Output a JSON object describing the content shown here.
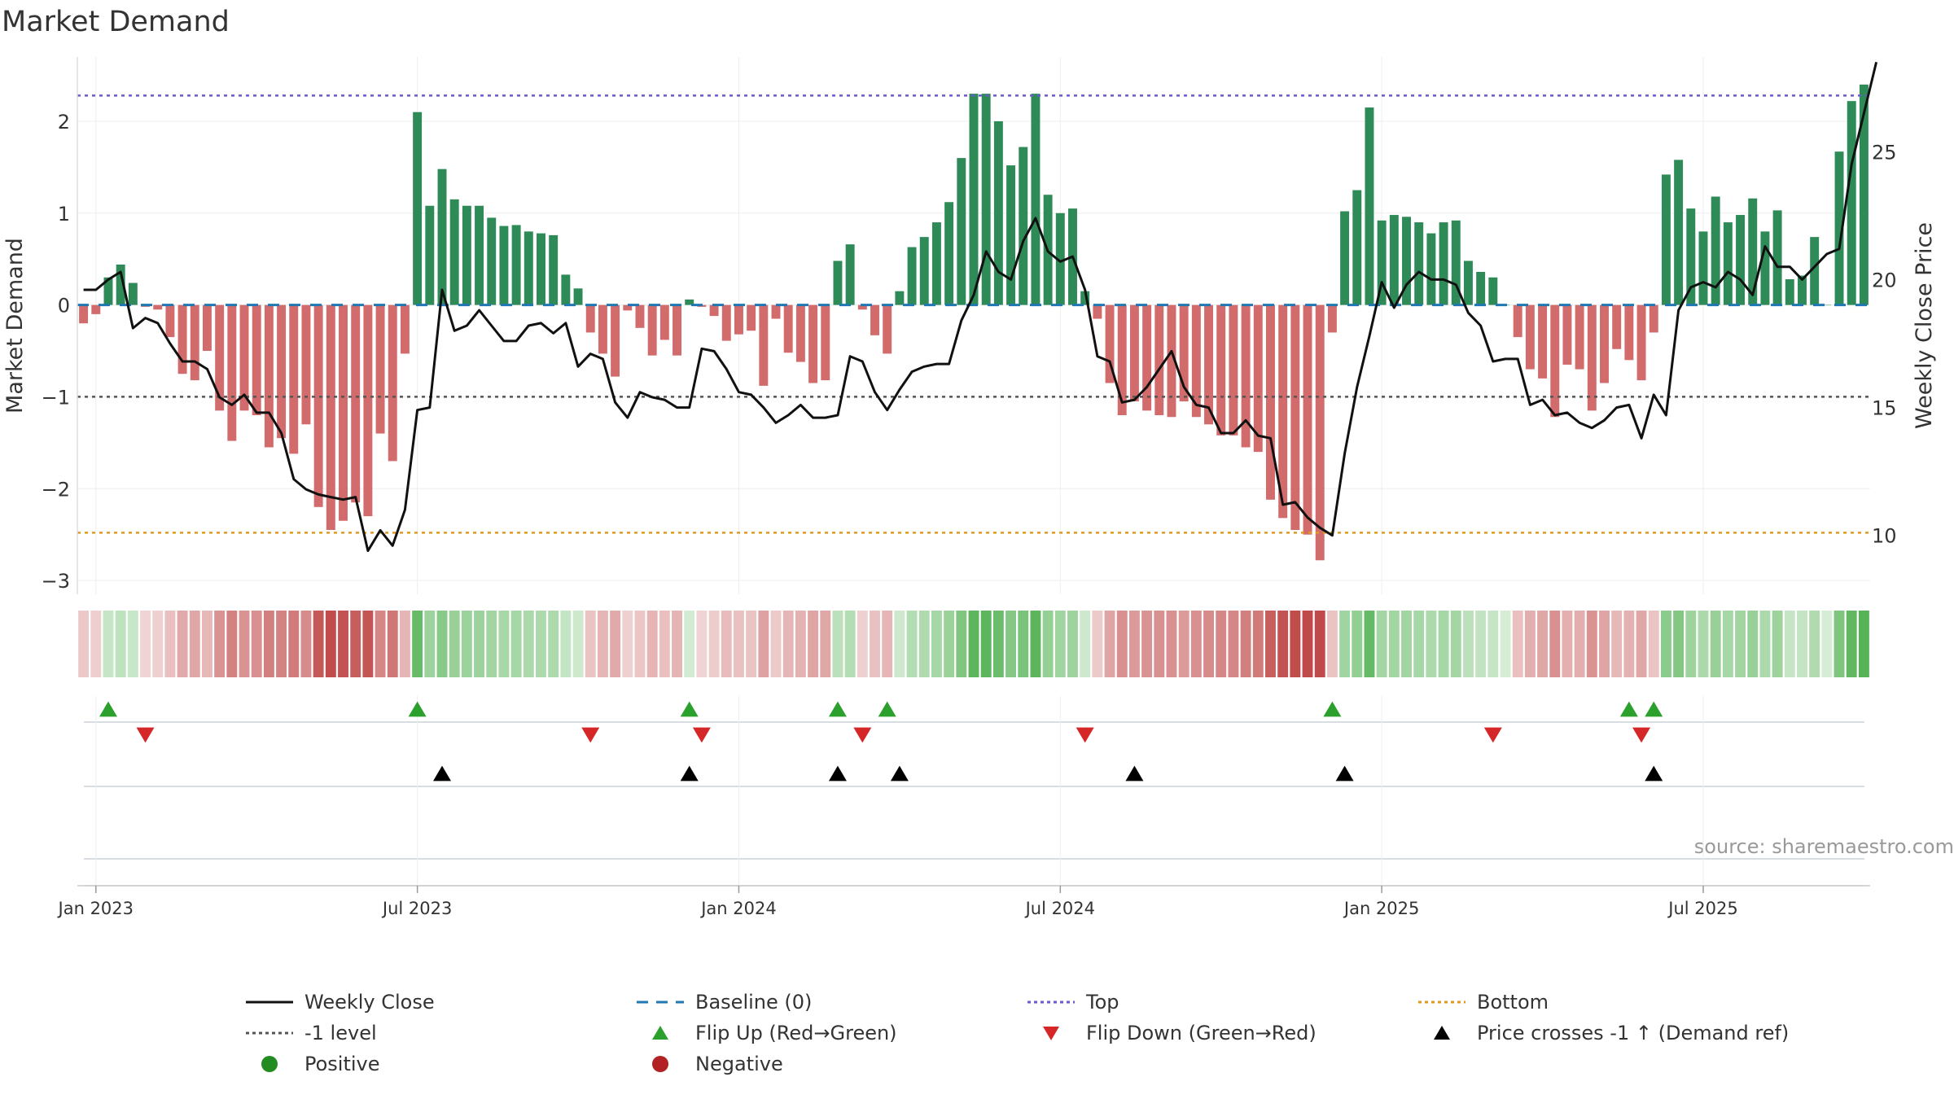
{
  "title": "Market Demand",
  "source_text": "source: sharemaestro.com",
  "colors": {
    "positive": "#2e8b57",
    "negative": "#cd5c5c",
    "close": "#111111",
    "baseline": "#1f77b4",
    "top": "#6a5acd",
    "bottom": "#e09a1f",
    "level": "#555555",
    "flip_up": "#2ca02c",
    "flip_down": "#d62728",
    "cross": "#000000",
    "positive_dot": "#228b22",
    "negative_dot": "#b22222"
  },
  "legend": [
    {
      "key": "close",
      "label": "Weekly Close",
      "swatch": "solid-line",
      "color": "#111111"
    },
    {
      "key": "baseline",
      "label": "Baseline (0)",
      "swatch": "dashed-line",
      "color": "#1f77b4"
    },
    {
      "key": "top",
      "label": "Top",
      "swatch": "dotted-line",
      "color": "#6a5acd"
    },
    {
      "key": "bottom",
      "label": "Bottom",
      "swatch": "dotted-line",
      "color": "#e09a1f"
    },
    {
      "key": "level",
      "label": "-1 level",
      "swatch": "dotted-line",
      "color": "#555555"
    },
    {
      "key": "flip_up",
      "label": "Flip Up (Red→Green)",
      "swatch": "triangle-up",
      "color": "#2ca02c"
    },
    {
      "key": "flip_down",
      "label": "Flip Down (Green→Red)",
      "swatch": "triangle-down",
      "color": "#d62728"
    },
    {
      "key": "cross",
      "label": "Price crosses -1 ↑ (Demand ref)",
      "swatch": "triangle-up",
      "color": "#000000"
    },
    {
      "key": "positive",
      "label": "Positive",
      "swatch": "dot",
      "color": "#228b22"
    },
    {
      "key": "negative",
      "label": "Negative",
      "swatch": "dot",
      "color": "#b22222"
    }
  ],
  "chart_data": {
    "type": "bar",
    "title": "Market Demand",
    "ylabel_left": "Market Demand",
    "ylabel_right": "Weekly Close Price",
    "left_axis": {
      "ylim": [
        -3.15,
        2.7
      ],
      "ticks": [
        2,
        1,
        0,
        -1,
        -2,
        -3
      ],
      "tick_labels": [
        "2",
        "1",
        "0",
        "−1",
        "−2",
        "−3"
      ]
    },
    "right_axis": {
      "ylim": [
        7.7,
        28.7
      ],
      "ticks": [
        25,
        20,
        15,
        10
      ],
      "tick_labels": [
        "25",
        "20",
        "15",
        "10"
      ]
    },
    "x_axis": {
      "start_date": "2022-12-26",
      "week_count": 145,
      "tick_weeks": [
        1,
        27,
        53,
        79,
        105,
        131
      ],
      "tick_labels": [
        "Jan 2023",
        "Jul 2023",
        "Jan 2024",
        "Jul 2024",
        "Jan 2025",
        "Jul 2025"
      ]
    },
    "reference_lines": {
      "top": 2.28,
      "bottom": -2.48,
      "minus_one": -1.0,
      "baseline": 0
    },
    "demand_values": [
      -0.2,
      -0.1,
      0.3,
      0.44,
      0.24,
      -0.02,
      -0.05,
      -0.35,
      -0.75,
      -0.82,
      -0.5,
      -1.15,
      -1.48,
      -1.15,
      -1.2,
      -1.55,
      -1.45,
      -1.62,
      -1.3,
      -2.2,
      -2.45,
      -2.35,
      -2.15,
      -2.3,
      -1.4,
      -1.7,
      -0.53,
      2.1,
      1.08,
      1.48,
      1.15,
      1.08,
      1.08,
      0.95,
      0.86,
      0.87,
      0.8,
      0.78,
      0.76,
      0.33,
      0.18,
      -0.3,
      -0.53,
      -0.78,
      -0.06,
      -0.25,
      -0.55,
      -0.38,
      -0.55,
      0.06,
      -0.02,
      -0.12,
      -0.39,
      -0.32,
      -0.28,
      -0.88,
      -0.15,
      -0.52,
      -0.62,
      -0.85,
      -0.82,
      0.48,
      0.66,
      -0.05,
      -0.33,
      -0.53,
      0.15,
      0.63,
      0.74,
      0.9,
      1.12,
      1.6,
      2.3,
      2.3,
      2.0,
      1.52,
      1.72,
      2.3,
      1.2,
      1.0,
      1.05,
      0.15,
      -0.15,
      -0.85,
      -1.2,
      -1.05,
      -1.15,
      -1.2,
      -1.22,
      -1.05,
      -1.22,
      -1.3,
      -1.42,
      -1.42,
      -1.55,
      -1.6,
      -2.12,
      -2.32,
      -2.45,
      -2.5,
      -2.78,
      -0.3,
      1.02,
      1.25,
      2.15,
      0.92,
      0.98,
      0.96,
      0.9,
      0.78,
      0.9,
      0.92,
      0.48,
      0.36,
      0.3,
      0.0,
      -0.35,
      -0.7,
      -0.8,
      -1.22,
      -0.65,
      -0.7,
      -1.15,
      -0.85,
      -0.48,
      -0.6,
      -0.82,
      -0.3,
      1.42,
      1.58,
      1.05,
      0.8,
      1.18,
      0.9,
      0.98,
      1.16,
      0.8,
      1.03,
      0.28,
      0.32,
      0.74,
      0.0,
      1.67,
      2.22,
      2.4
    ],
    "close_values": [
      19.6,
      19.6,
      20.0,
      20.3,
      18.1,
      18.5,
      18.3,
      17.5,
      16.8,
      16.8,
      16.5,
      15.4,
      15.1,
      15.5,
      14.8,
      14.8,
      14.0,
      12.2,
      11.8,
      11.6,
      11.5,
      11.4,
      11.5,
      9.4,
      10.2,
      9.6,
      11.0,
      14.9,
      15.0,
      19.6,
      18.0,
      18.2,
      18.8,
      18.2,
      17.6,
      17.6,
      18.2,
      18.3,
      17.9,
      18.3,
      16.6,
      17.1,
      16.9,
      15.2,
      14.6,
      15.6,
      15.4,
      15.3,
      15.0,
      15.0,
      17.3,
      17.2,
      16.5,
      15.6,
      15.5,
      15.0,
      14.4,
      14.7,
      15.1,
      14.6,
      14.6,
      14.7,
      17.0,
      16.8,
      15.6,
      14.9,
      15.7,
      16.4,
      16.6,
      16.7,
      16.7,
      18.4,
      19.4,
      21.1,
      20.3,
      20.0,
      21.5,
      22.4,
      21.1,
      20.7,
      20.9,
      19.6,
      17.0,
      16.8,
      15.2,
      15.3,
      15.8,
      16.5,
      17.2,
      15.8,
      15.1,
      15.0,
      14.0,
      14.0,
      14.5,
      13.9,
      13.8,
      11.2,
      11.3,
      10.7,
      10.3,
      10.0,
      13.2,
      15.8,
      17.8,
      19.9,
      18.9,
      19.8,
      20.3,
      20.0,
      20.0,
      19.8,
      18.7,
      18.2,
      16.8,
      16.9,
      16.9,
      15.1,
      15.3,
      14.7,
      14.8,
      14.4,
      14.2,
      14.5,
      15.0,
      15.1,
      13.8,
      15.5,
      14.7,
      18.8,
      19.7,
      19.9,
      19.7,
      20.3,
      20.0,
      19.4,
      21.3,
      20.5,
      20.5,
      20.0,
      20.5,
      21.0,
      21.2,
      24.5,
      26.5,
      28.5
    ],
    "flip_up_weeks": [
      2,
      27,
      49,
      61,
      65,
      101,
      125,
      127
    ],
    "flip_down_weeks": [
      5,
      41,
      50,
      63,
      81,
      114,
      126
    ],
    "price_cross_weeks": [
      29,
      49,
      61,
      66,
      85,
      102,
      127
    ]
  }
}
